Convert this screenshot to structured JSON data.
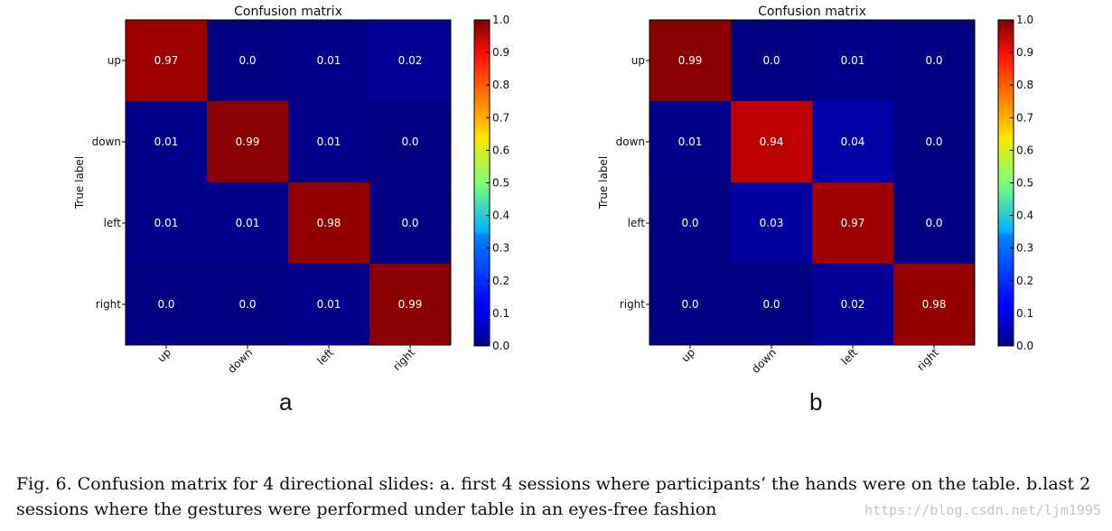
{
  "chart_data": [
    {
      "type": "heatmap",
      "title": "Confusion matrix",
      "panel_label": "a",
      "ylabel": "True label",
      "xlabel": "",
      "row_labels": [
        "up",
        "down",
        "left",
        "right"
      ],
      "col_labels": [
        "up",
        "down",
        "left",
        "right"
      ],
      "values": [
        [
          0.97,
          0.0,
          0.01,
          0.02
        ],
        [
          0.01,
          0.99,
          0.01,
          0.0
        ],
        [
          0.01,
          0.01,
          0.98,
          0.0
        ],
        [
          0.0,
          0.0,
          0.01,
          0.99
        ]
      ],
      "cell_text": [
        [
          "0.97",
          "0.0",
          "0.01",
          "0.02"
        ],
        [
          "0.01",
          "0.99",
          "0.01",
          "0.0"
        ],
        [
          "0.01",
          "0.01",
          "0.98",
          "0.0"
        ],
        [
          "0.0",
          "0.0",
          "0.01",
          "0.99"
        ]
      ],
      "colorbar": {
        "range": [
          0.0,
          1.0
        ],
        "ticks": [
          "0.0",
          "0.1",
          "0.2",
          "0.3",
          "0.4",
          "0.5",
          "0.6",
          "0.7",
          "0.8",
          "0.9",
          "1.0"
        ],
        "colormap": "jet"
      }
    },
    {
      "type": "heatmap",
      "title": "Confusion matrix",
      "panel_label": "b",
      "ylabel": "True label",
      "xlabel": "",
      "row_labels": [
        "up",
        "down",
        "left",
        "right"
      ],
      "col_labels": [
        "up",
        "down",
        "left",
        "right"
      ],
      "values": [
        [
          0.99,
          0.0,
          0.01,
          0.0
        ],
        [
          0.01,
          0.94,
          0.04,
          0.0
        ],
        [
          0.0,
          0.03,
          0.97,
          0.0
        ],
        [
          0.0,
          0.0,
          0.02,
          0.98
        ]
      ],
      "cell_text": [
        [
          "0.99",
          "0.0",
          "0.01",
          "0.0"
        ],
        [
          "0.01",
          "0.94",
          "0.04",
          "0.0"
        ],
        [
          "0.0",
          "0.03",
          "0.97",
          "0.0"
        ],
        [
          "0.0",
          "0.0",
          "0.02",
          "0.98"
        ]
      ],
      "colorbar": {
        "range": [
          0.0,
          1.0
        ],
        "ticks": [
          "0.0",
          "0.1",
          "0.2",
          "0.3",
          "0.4",
          "0.5",
          "0.6",
          "0.7",
          "0.8",
          "0.9",
          "1.0"
        ],
        "colormap": "jet"
      }
    }
  ],
  "caption": "Fig. 6.  Confusion matrix for 4 directional slides: a. first 4 sessions where participants‘ the hands were on the table. b.last 2 sessions where the gestures were performed under table in an eyes-free fashion",
  "watermark": "https://blog.csdn.net/ljm1995"
}
